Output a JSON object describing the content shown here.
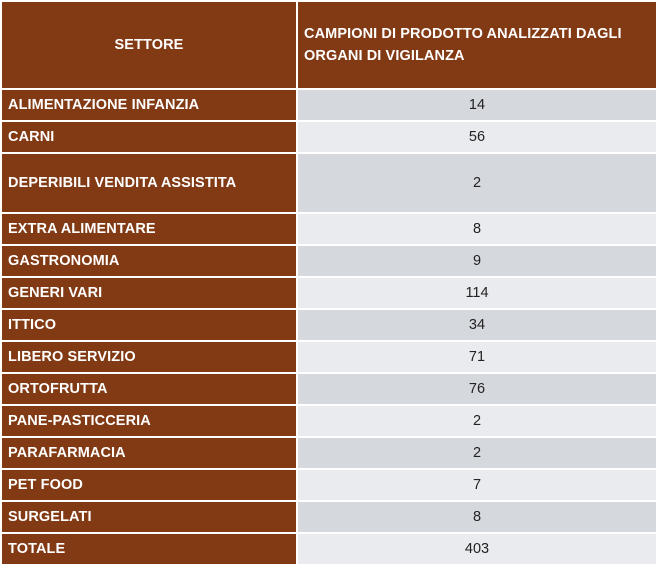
{
  "table": {
    "headers": {
      "sector": "SETTORE",
      "samples": "CAMPIONI DI PRODOTTO ANALIZZATI DAGLI ORGANI DI VIGILANZA"
    },
    "rows": [
      {
        "sector": "ALIMENTAZIONE INFANZIA",
        "value": "14"
      },
      {
        "sector": "CARNI",
        "value": "56"
      },
      {
        "sector": "DEPERIBILI VENDITA ASSISTITA",
        "value": "2"
      },
      {
        "sector": "EXTRA ALIMENTARE",
        "value": "8"
      },
      {
        "sector": "GASTRONOMIA",
        "value": "9"
      },
      {
        "sector": "GENERI VARI",
        "value": "114"
      },
      {
        "sector": "ITTICO",
        "value": "34"
      },
      {
        "sector": "LIBERO SERVIZIO",
        "value": "71"
      },
      {
        "sector": "ORTOFRUTTA",
        "value": "76"
      },
      {
        "sector": "PANE-PASTICCERIA",
        "value": "2"
      },
      {
        "sector": "PARAFARMACIA",
        "value": "2"
      },
      {
        "sector": "PET FOOD",
        "value": "7"
      },
      {
        "sector": "SURGELATI",
        "value": "8"
      }
    ],
    "total": {
      "sector": "TOTALE",
      "value": "403"
    }
  },
  "colors": {
    "header_bg": "#823a14",
    "row_alt_dark": "#d5d8dd",
    "row_alt_light": "#e9ebee"
  }
}
